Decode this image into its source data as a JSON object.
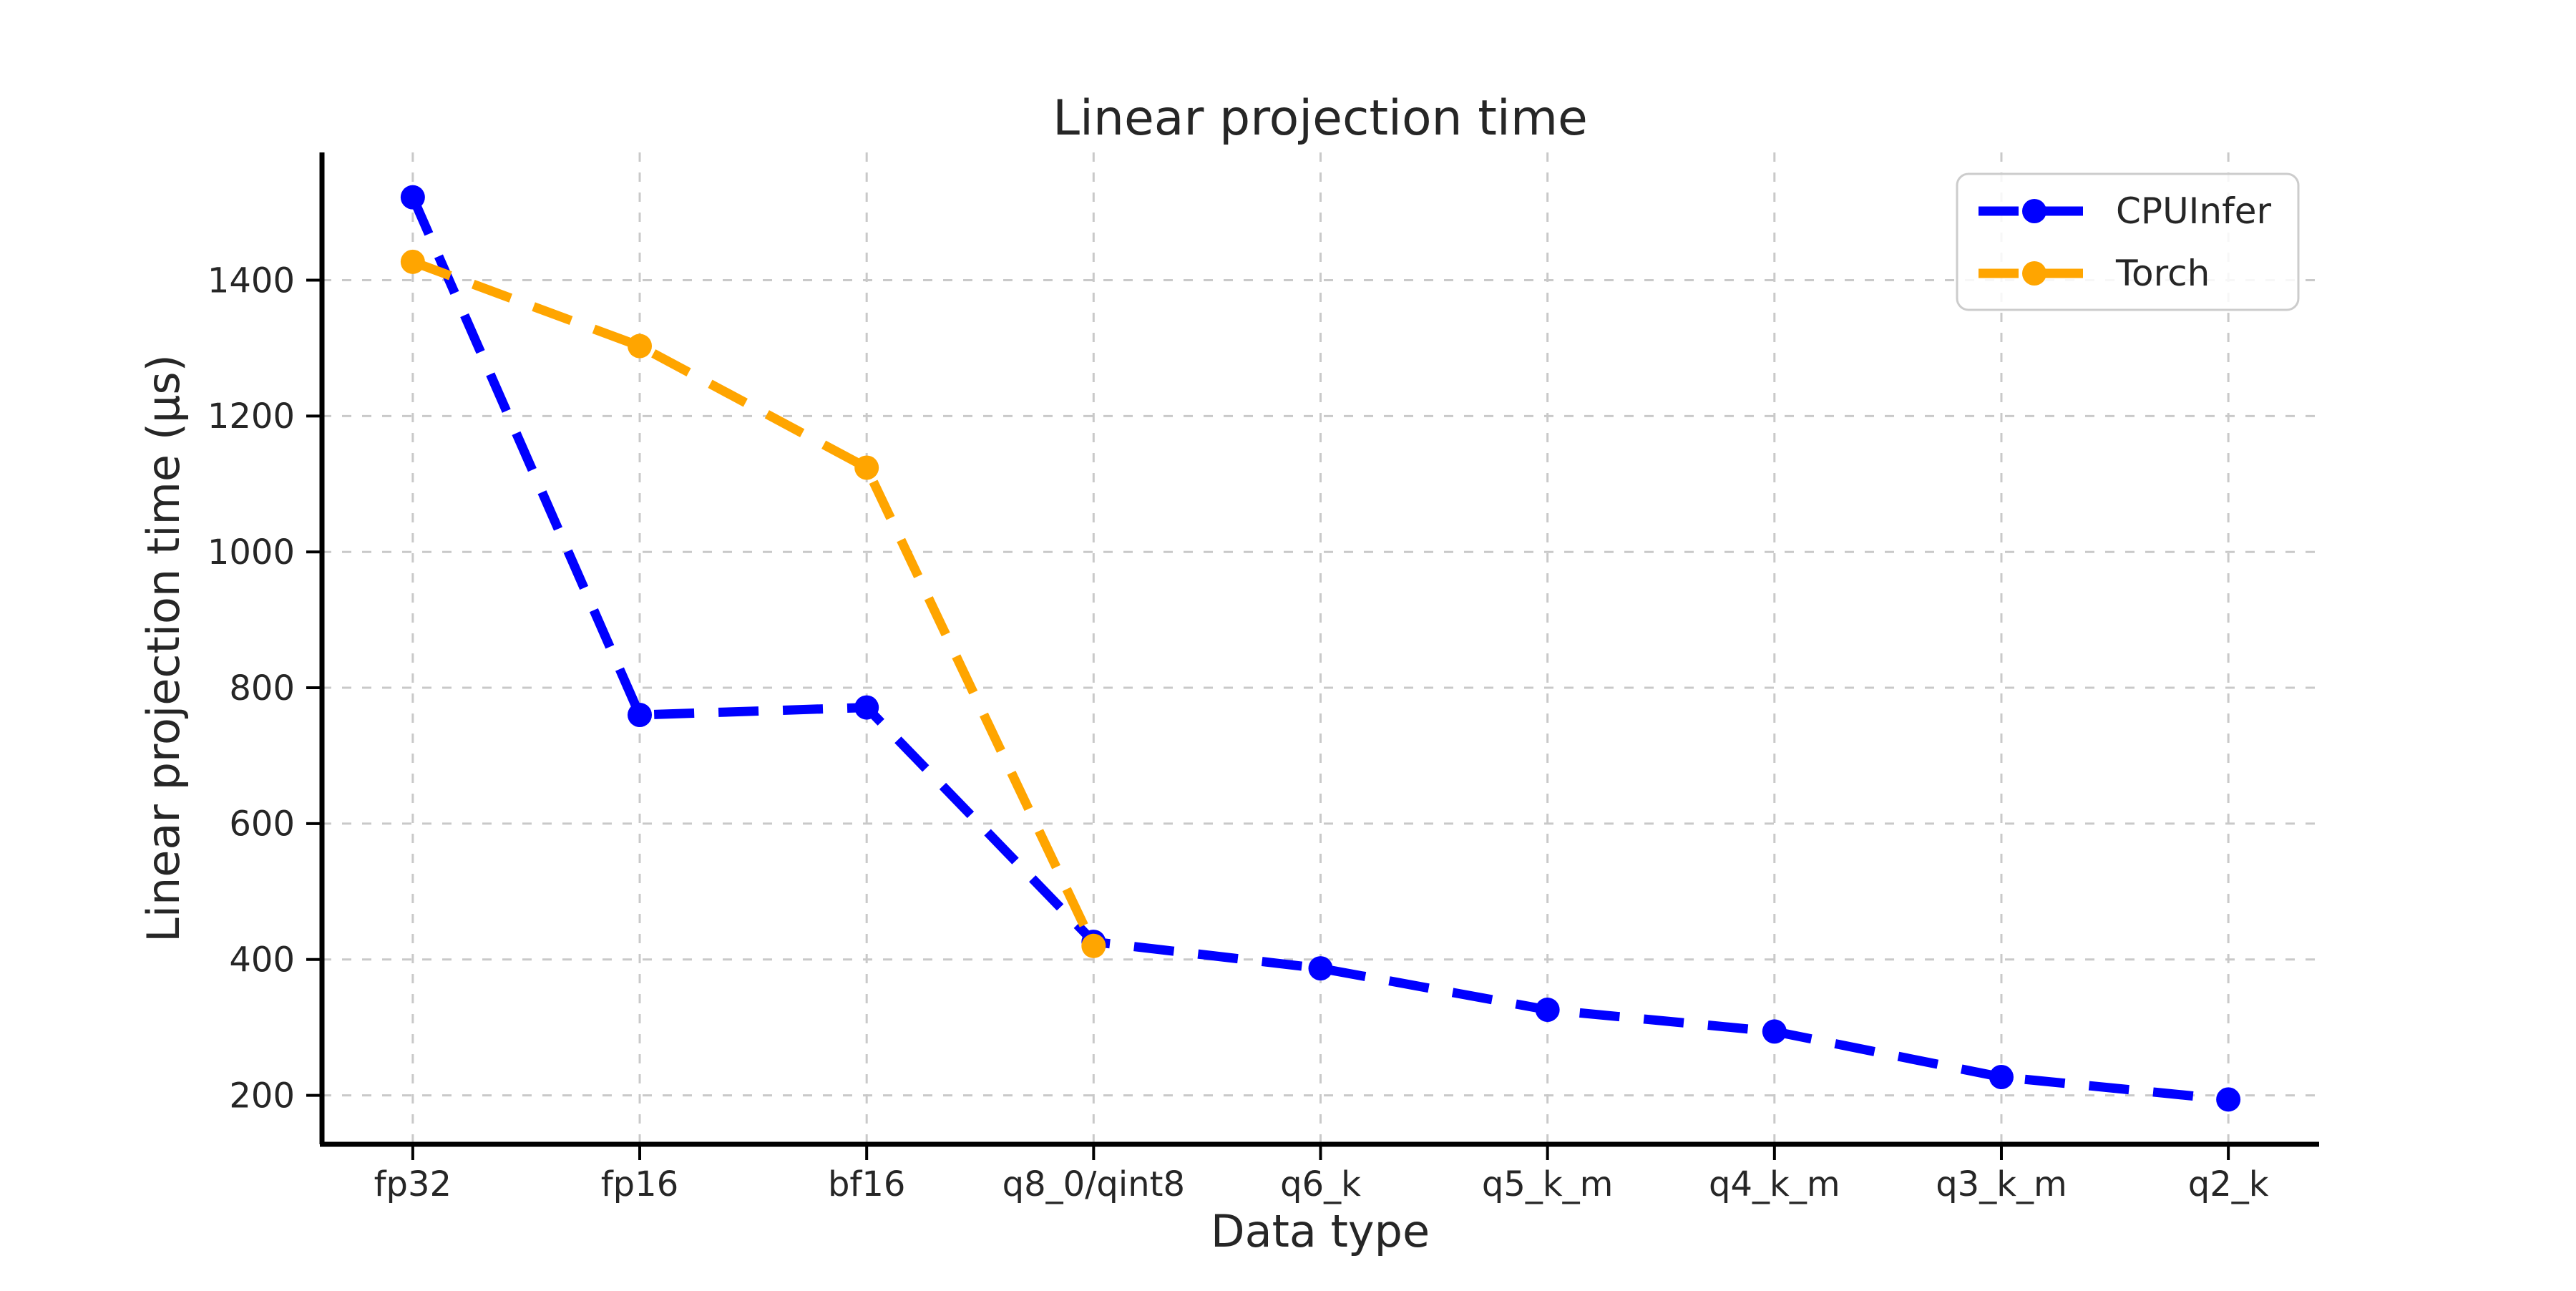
{
  "figure": {
    "background": "#ffffff"
  },
  "chart_data": {
    "type": "line",
    "title": "Linear projection time",
    "xlabel": "Data type",
    "ylabel": "Linear projection time (μs)",
    "categories": [
      "fp32",
      "fp16",
      "bf16",
      "q8_0/qint8",
      "q6_k",
      "q5_k_m",
      "q4_k_m",
      "q3_k_m",
      "q2_k"
    ],
    "series": [
      {
        "name": "CPUInfer",
        "color": "#0000ff",
        "values": [
          1522,
          760,
          771,
          426,
          387,
          326,
          294,
          227,
          194
        ]
      },
      {
        "name": "Torch",
        "color": "#ffa500",
        "values": [
          1427,
          1303,
          1124,
          420,
          null,
          null,
          null,
          null,
          null
        ]
      }
    ],
    "yticks": [
      200,
      400,
      600,
      800,
      1000,
      1200,
      1400
    ],
    "ylim": [
      128,
      1588
    ],
    "grid": true,
    "line_style": "dashed",
    "marker": "circle",
    "legend_position": "upper right"
  }
}
